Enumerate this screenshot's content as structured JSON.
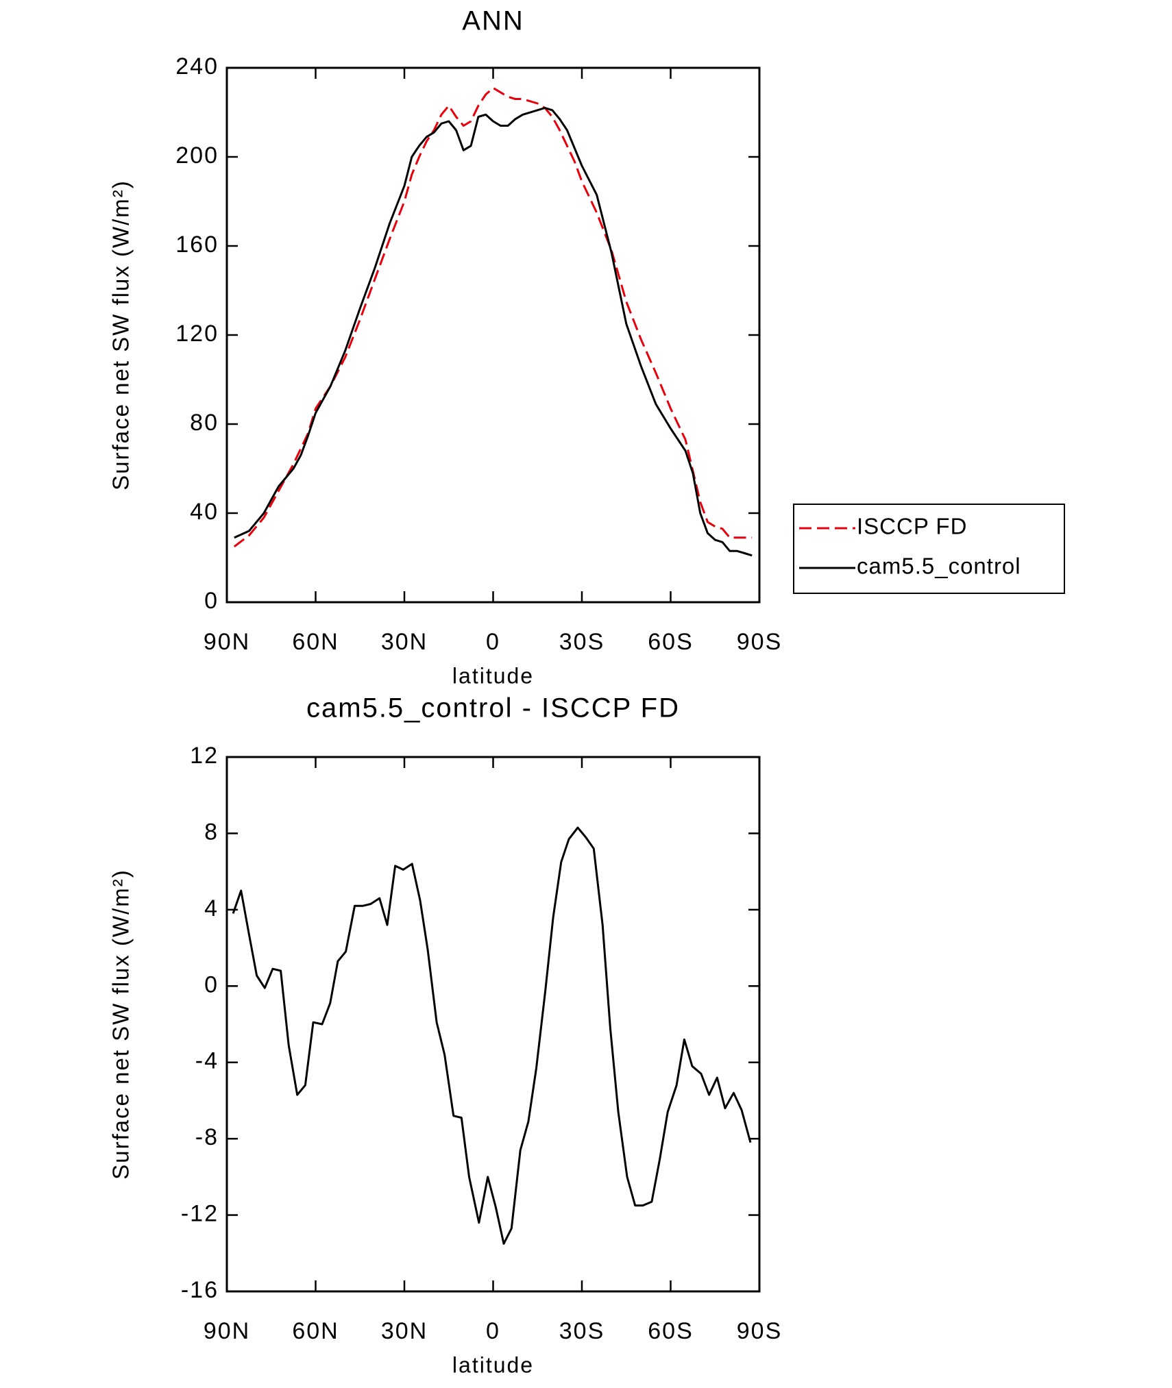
{
  "chart_data": [
    {
      "type": "line",
      "title": "ANN",
      "xlabel": "latitude",
      "ylabel": "Surface net SW flux (W/m²)",
      "x": [
        87.5,
        82.5,
        77.5,
        72.5,
        67.5,
        65,
        62.5,
        60,
        55,
        50,
        45,
        40,
        35,
        30,
        27.5,
        25,
        22.5,
        20,
        17.5,
        15,
        12.5,
        10,
        7.5,
        5,
        2.5,
        0,
        -2.5,
        -5,
        -7.5,
        -10,
        -15,
        -17.5,
        -20,
        -22.5,
        -25,
        -27.5,
        -30,
        -35,
        -40,
        -45,
        -50,
        -55,
        -60,
        -65,
        -67.5,
        -70,
        -72.5,
        -75,
        -77.5,
        -80,
        -82.5,
        -85,
        -87.5
      ],
      "series": [
        {
          "name": "ISCCP FD",
          "color": "#e8000b",
          "dashed": true,
          "values": [
            25,
            30,
            38,
            50,
            62,
            69,
            76,
            87,
            97,
            110,
            127,
            145,
            163,
            180,
            192,
            200,
            207,
            212,
            219,
            223,
            218,
            214,
            216,
            223,
            228,
            231,
            229,
            227,
            226,
            226,
            224,
            222,
            218,
            212,
            205,
            198,
            189,
            175,
            158,
            135,
            118,
            103,
            87,
            73,
            59,
            45,
            36,
            34,
            33,
            29,
            29,
            29,
            29
          ]
        },
        {
          "name": "cam5.5_control",
          "color": "#000000",
          "dashed": false,
          "values": [
            29,
            32,
            40,
            52,
            60,
            66,
            75,
            85,
            97,
            113,
            132,
            150,
            170,
            187,
            200,
            205,
            209,
            211,
            215,
            216,
            212,
            203,
            205,
            218,
            219,
            216,
            214,
            214,
            217,
            219,
            221,
            222,
            221,
            217,
            212,
            204,
            196,
            183,
            157,
            125,
            106,
            89,
            78,
            68,
            58,
            40,
            31,
            28,
            27,
            23,
            23,
            22,
            21
          ]
        }
      ],
      "xlim": [
        90,
        -90
      ],
      "xticks": [
        {
          "value": 90,
          "label": "90N"
        },
        {
          "value": 60,
          "label": "60N"
        },
        {
          "value": 30,
          "label": "30N"
        },
        0,
        {
          "value": -30,
          "label": "30S"
        },
        {
          "value": -60,
          "label": "60S"
        },
        {
          "value": -90,
          "label": "90S"
        }
      ],
      "ylim": [
        0,
        240
      ],
      "yticks": [
        0,
        40,
        80,
        120,
        160,
        200,
        240
      ],
      "legend": "right"
    },
    {
      "type": "line",
      "title": "cam5.5_control - ISCCP FD",
      "xlabel": "latitude",
      "ylabel": "Surface net SW flux (W/m²)",
      "x": [
        87.9,
        85.2,
        82.5,
        79.9,
        77.2,
        74.5,
        71.8,
        69.1,
        66.2,
        63.5,
        60.8,
        57.8,
        55.1,
        52.5,
        49.8,
        46.8,
        44.1,
        41.4,
        38.4,
        35.8,
        33.1,
        30.4,
        27.4,
        24.7,
        22.1,
        19.1,
        16.4,
        13.4,
        10.7,
        8.1,
        4.8,
        1.8,
        -0.9,
        -3.6,
        -6.2,
        -9.2,
        -11.9,
        -14.6,
        -17.6,
        -20.3,
        -23.0,
        -25.6,
        -28.6,
        -31.3,
        -34.0,
        -37.0,
        -39.6,
        -42.3,
        -45.3,
        -48.0,
        -50.6,
        -53.6,
        -56.3,
        -59.0,
        -62.0,
        -64.6,
        -67.3,
        -70.3,
        -73.0,
        -75.7,
        -78.4,
        -81.3,
        -84.0,
        -87.0
      ],
      "series": [
        {
          "name": "cam5.5_control - ISCCP FD",
          "color": "#000000",
          "dashed": false,
          "values": [
            3.8,
            5.0,
            2.7,
            0.55,
            -0.1,
            0.9,
            0.8,
            -3.1,
            -5.7,
            -5.2,
            -1.9,
            -2.0,
            -0.9,
            1.3,
            1.8,
            4.2,
            4.2,
            4.3,
            4.6,
            3.2,
            6.3,
            6.1,
            6.4,
            4.5,
            1.9,
            -1.9,
            -3.6,
            -6.8,
            -6.9,
            -10.0,
            -12.4,
            -10.0,
            -11.6,
            -13.5,
            -12.7,
            -8.6,
            -7.1,
            -4.3,
            -0.3,
            3.6,
            6.5,
            7.7,
            8.3,
            7.8,
            7.2,
            3.2,
            -2.2,
            -6.6,
            -10.0,
            -11.5,
            -11.5,
            -11.3,
            -9.1,
            -6.6,
            -5.2,
            -2.8,
            -4.2,
            -4.6,
            -5.7,
            -4.8,
            -6.4,
            -5.6,
            -6.5,
            -8.2
          ]
        }
      ],
      "xlim": [
        90,
        -90
      ],
      "xticks": [
        {
          "value": 90,
          "label": "90N"
        },
        {
          "value": 60,
          "label": "60N"
        },
        {
          "value": 30,
          "label": "30N"
        },
        0,
        {
          "value": -30,
          "label": "30S"
        },
        {
          "value": -60,
          "label": "60S"
        },
        {
          "value": -90,
          "label": "90S"
        }
      ],
      "ylim": [
        -16,
        12
      ],
      "yticks": [
        -16,
        -12,
        -8,
        -4,
        0,
        4,
        8,
        12
      ]
    }
  ]
}
